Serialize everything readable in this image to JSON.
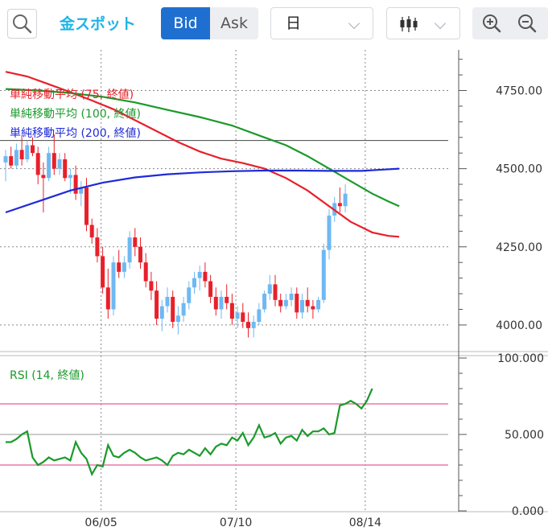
{
  "toolbar": {
    "instrument": "金スポット",
    "bid_label": "Bid",
    "ask_label": "Ask",
    "period_value": "日",
    "icons": {
      "search": "search-icon",
      "chart_type": "candlestick-icon",
      "zoom_in": "zoom-in-icon",
      "zoom_out": "zoom-out-icon",
      "dropdown": "chevron-down-icon"
    }
  },
  "chart_data": [
    {
      "type": "candlestick",
      "ylim": [
        3920,
        4880
      ],
      "y_ticks": [
        "4750.00",
        "4500.00",
        "4250.00",
        "4000.00"
      ],
      "y_tick_values": [
        4750,
        4500,
        4250,
        4000
      ],
      "x_tick_labels": [
        "06/05",
        "07/10",
        "08/14"
      ],
      "x_tick_index": [
        18,
        43,
        67
      ],
      "horizontal_line": 4590,
      "up_color": "#6fb8f2",
      "down_color": "#e8202a",
      "legend": [
        {
          "label": "単純移動平均 (75, 終値)",
          "color": "#e8202a"
        },
        {
          "label": "単純移動平均 (100, 終値)",
          "color": "#1a9a2a"
        },
        {
          "label": "単純移動平均 (200, 終値)",
          "color": "#1e2ad8"
        }
      ],
      "ohlc": [
        [
          4520,
          4560,
          4460,
          4540
        ],
        [
          4540,
          4570,
          4500,
          4510
        ],
        [
          4510,
          4580,
          4500,
          4560
        ],
        [
          4560,
          4600,
          4510,
          4530
        ],
        [
          4530,
          4590,
          4520,
          4575
        ],
        [
          4575,
          4600,
          4540,
          4550
        ],
        [
          4550,
          4570,
          4450,
          4480
        ],
        [
          4480,
          4520,
          4360,
          4470
        ],
        [
          4470,
          4570,
          4460,
          4550
        ],
        [
          4550,
          4610,
          4480,
          4500
        ],
        [
          4500,
          4550,
          4480,
          4530
        ],
        [
          4530,
          4550,
          4460,
          4470
        ],
        [
          4470,
          4500,
          4420,
          4480
        ],
        [
          4480,
          4510,
          4400,
          4420
        ],
        [
          4420,
          4460,
          4380,
          4440
        ],
        [
          4440,
          4470,
          4300,
          4320
        ],
        [
          4320,
          4340,
          4260,
          4280
        ],
        [
          4280,
          4310,
          4200,
          4220
        ],
        [
          4220,
          4250,
          4100,
          4120
        ],
        [
          4120,
          4180,
          4020,
          4050
        ],
        [
          4050,
          4220,
          4030,
          4200
        ],
        [
          4200,
          4240,
          4150,
          4170
        ],
        [
          4170,
          4220,
          4150,
          4200
        ],
        [
          4200,
          4300,
          4180,
          4280
        ],
        [
          4280,
          4310,
          4220,
          4250
        ],
        [
          4250,
          4280,
          4180,
          4200
        ],
        [
          4200,
          4230,
          4120,
          4140
        ],
        [
          4140,
          4170,
          4080,
          4110
        ],
        [
          4110,
          4140,
          4000,
          4020
        ],
        [
          4020,
          4080,
          3980,
          4060
        ],
        [
          4060,
          4120,
          4040,
          4090
        ],
        [
          4090,
          4110,
          3990,
          4010
        ],
        [
          4010,
          4060,
          3970,
          4030
        ],
        [
          4030,
          4090,
          4010,
          4070
        ],
        [
          4070,
          4140,
          4050,
          4120
        ],
        [
          4120,
          4170,
          4100,
          4150
        ],
        [
          4150,
          4190,
          4110,
          4170
        ],
        [
          4170,
          4200,
          4120,
          4140
        ],
        [
          4140,
          4160,
          4070,
          4090
        ],
        [
          4090,
          4120,
          4030,
          4050
        ],
        [
          4050,
          4110,
          4020,
          4090
        ],
        [
          4090,
          4130,
          4050,
          4070
        ],
        [
          4070,
          4100,
          4000,
          4020
        ],
        [
          4020,
          4060,
          3990,
          4040
        ],
        [
          4040,
          4070,
          3990,
          4010
        ],
        [
          4010,
          4040,
          3960,
          3990
        ],
        [
          3990,
          4030,
          3960,
          4010
        ],
        [
          4010,
          4070,
          4000,
          4050
        ],
        [
          4050,
          4110,
          4040,
          4100
        ],
        [
          4100,
          4160,
          4080,
          4130
        ],
        [
          4130,
          4160,
          4060,
          4080
        ],
        [
          4080,
          4100,
          4040,
          4060
        ],
        [
          4060,
          4100,
          4050,
          4080
        ],
        [
          4080,
          4120,
          4060,
          4100
        ],
        [
          4100,
          4120,
          4020,
          4040
        ],
        [
          4040,
          4100,
          4020,
          4080
        ],
        [
          4080,
          4120,
          4040,
          4060
        ],
        [
          4060,
          4080,
          4020,
          4050
        ],
        [
          4050,
          4090,
          4040,
          4080
        ],
        [
          4080,
          4260,
          4070,
          4240
        ],
        [
          4240,
          4370,
          4210,
          4350
        ],
        [
          4350,
          4410,
          4330,
          4390
        ],
        [
          4390,
          4440,
          4360,
          4380
        ],
        [
          4380,
          4450,
          4360,
          4420
        ]
      ],
      "sma": {
        "75": [
          [
            0,
            4810
          ],
          [
            4,
            4795
          ],
          [
            8,
            4770
          ],
          [
            12,
            4745
          ],
          [
            16,
            4718
          ],
          [
            20,
            4690
          ],
          [
            24,
            4655
          ],
          [
            28,
            4620
          ],
          [
            32,
            4585
          ],
          [
            36,
            4555
          ],
          [
            40,
            4532
          ],
          [
            44,
            4518
          ],
          [
            48,
            4500
          ],
          [
            52,
            4470
          ],
          [
            56,
            4430
          ],
          [
            60,
            4380
          ],
          [
            64,
            4330
          ],
          [
            68,
            4296
          ],
          [
            71,
            4285
          ],
          [
            73,
            4282
          ]
        ],
        "100": [
          [
            0,
            4755
          ],
          [
            6,
            4750
          ],
          [
            12,
            4742
          ],
          [
            18,
            4730
          ],
          [
            24,
            4712
          ],
          [
            30,
            4688
          ],
          [
            36,
            4665
          ],
          [
            42,
            4638
          ],
          [
            48,
            4600
          ],
          [
            52,
            4575
          ],
          [
            56,
            4540
          ],
          [
            60,
            4500
          ],
          [
            64,
            4460
          ],
          [
            68,
            4420
          ],
          [
            71,
            4395
          ],
          [
            73,
            4380
          ]
        ],
        "200": [
          [
            0,
            4360
          ],
          [
            6,
            4395
          ],
          [
            12,
            4430
          ],
          [
            18,
            4455
          ],
          [
            24,
            4472
          ],
          [
            30,
            4482
          ],
          [
            36,
            4488
          ],
          [
            42,
            4492
          ],
          [
            48,
            4494
          ],
          [
            54,
            4494
          ],
          [
            60,
            4493
          ],
          [
            66,
            4493
          ],
          [
            70,
            4497
          ],
          [
            73,
            4500
          ]
        ]
      }
    },
    {
      "type": "line",
      "title": "RSI (14, 終値)",
      "color": "#1a9a2a",
      "ylim": [
        0,
        100
      ],
      "y_ticks": [
        "100.000",
        "50.000",
        "0.000"
      ],
      "y_tick_values": [
        100,
        50,
        0
      ],
      "bands": [
        70,
        30
      ],
      "band_color": "#e878a8",
      "values": [
        45,
        45,
        47,
        50,
        52,
        35,
        30,
        32,
        35,
        33,
        34,
        35,
        33,
        45,
        38,
        34,
        24,
        30,
        29,
        43,
        36,
        35,
        38,
        40,
        38,
        35,
        33,
        34,
        35,
        33,
        30,
        36,
        38,
        37,
        40,
        38,
        36,
        41,
        37,
        42,
        44,
        43,
        48,
        46,
        51,
        43,
        48,
        56,
        48,
        49,
        51,
        44,
        48,
        49,
        46,
        53,
        49,
        52,
        52,
        54,
        50,
        51,
        69,
        70,
        72,
        70,
        67,
        72,
        80
      ]
    }
  ]
}
